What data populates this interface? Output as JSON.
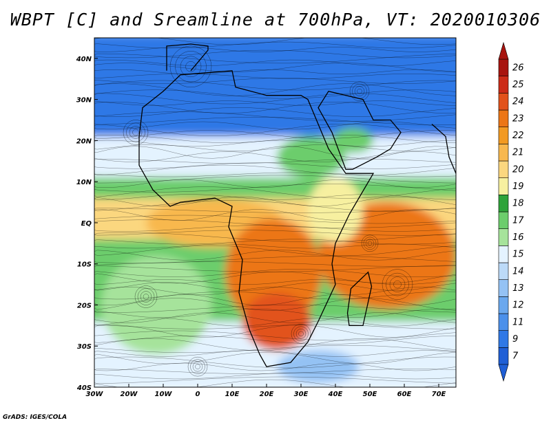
{
  "title": "WBPT [C] and Sreamline at 700hPa, VT: 2020010306",
  "credit": "GrADS: IGES/COLA",
  "map": {
    "lon_range": [
      -30,
      75
    ],
    "lat_range": [
      -40,
      45
    ],
    "lon_ticks": [
      {
        "value": -30,
        "label": "30W"
      },
      {
        "value": -20,
        "label": "20W"
      },
      {
        "value": -10,
        "label": "10W"
      },
      {
        "value": 0,
        "label": "0"
      },
      {
        "value": 10,
        "label": "10E"
      },
      {
        "value": 20,
        "label": "20E"
      },
      {
        "value": 30,
        "label": "30E"
      },
      {
        "value": 40,
        "label": "40E"
      },
      {
        "value": 50,
        "label": "50E"
      },
      {
        "value": 60,
        "label": "60E"
      },
      {
        "value": 70,
        "label": "70E"
      }
    ],
    "lat_ticks": [
      {
        "value": 40,
        "label": "40N"
      },
      {
        "value": 30,
        "label": "30N"
      },
      {
        "value": 20,
        "label": "20N"
      },
      {
        "value": 10,
        "label": "10N"
      },
      {
        "value": 0,
        "label": "EQ"
      },
      {
        "value": -10,
        "label": "10S"
      },
      {
        "value": -20,
        "label": "20S"
      },
      {
        "value": -30,
        "label": "30S"
      },
      {
        "value": -40,
        "label": "40S"
      }
    ],
    "zones": [
      {
        "lat_from": 45,
        "lat_to": 20,
        "value": 10
      },
      {
        "lat_from": 20,
        "lat_to": 10,
        "value": 15
      },
      {
        "lat_from": 10,
        "lat_to": 5,
        "value": 17
      },
      {
        "lat_from": 5,
        "lat_to": -5,
        "value": 20
      },
      {
        "lat_from": -5,
        "lat_to": -25,
        "value": 17
      },
      {
        "lat_from": -25,
        "lat_to": -40,
        "value": 15
      }
    ],
    "blobs": [
      {
        "lon": 5,
        "lat": 0,
        "rlon": 20,
        "rlat": 6,
        "value": 21
      },
      {
        "lon": 22,
        "lat": -12,
        "rlon": 14,
        "rlat": 13,
        "value": 23
      },
      {
        "lon": 23,
        "lat": -24,
        "rlon": 10,
        "rlat": 7,
        "value": 24
      },
      {
        "lon": 55,
        "lat": -8,
        "rlon": 20,
        "rlat": 13,
        "value": 23
      },
      {
        "lon": 40,
        "lat": 3,
        "rlon": 8,
        "rlat": 8,
        "value": 19
      },
      {
        "lon": 33,
        "lat": 16,
        "rlon": 10,
        "rlat": 5,
        "value": 17
      },
      {
        "lon": 45,
        "lat": 20,
        "rlon": 6,
        "rlat": 3,
        "value": 17
      },
      {
        "lon": -12,
        "lat": -20,
        "rlon": 16,
        "rlat": 12,
        "value": 16
      },
      {
        "lon": 35,
        "lat": -35,
        "rlon": 12,
        "rlat": 4,
        "value": 13
      }
    ],
    "streamline_color": "#000000"
  },
  "colorbar": {
    "levels": [
      "7",
      "9",
      "11",
      "12",
      "13",
      "14",
      "15",
      "16",
      "17",
      "18",
      "19",
      "20",
      "21",
      "22",
      "23",
      "24",
      "25",
      "26"
    ],
    "colors": [
      "#1f5fd6",
      "#2f78e6",
      "#4b90ea",
      "#6aa8ee",
      "#94c2f4",
      "#bcdaf8",
      "#e4f3ff",
      "#a6e39b",
      "#6ccd6c",
      "#2ea33a",
      "#f7f0a0",
      "#fbd77f",
      "#f8b84e",
      "#f29a22",
      "#ec7616",
      "#e2521b",
      "#cc2b18",
      "#a8140f"
    ]
  }
}
